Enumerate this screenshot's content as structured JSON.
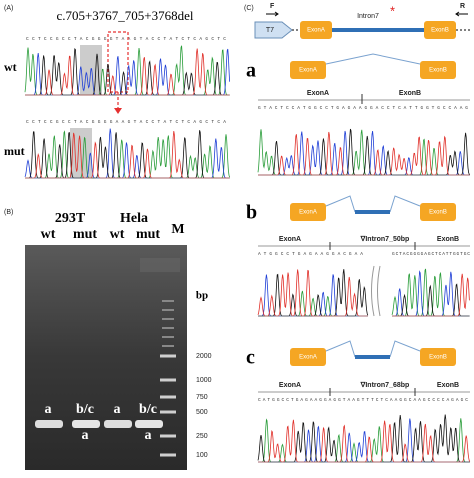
{
  "panel_a": {
    "label": "(A)",
    "mutation": "c.705+3767_705+3768del",
    "rows": [
      "wt",
      "mut"
    ],
    "sequences": [
      "CCTCCGCCTACGGGGTAAGTACCTATCTCAGCTC",
      "CCTCCGCCTACGGGGAAGTACCTATCTCAGCTCA"
    ]
  },
  "panel_b": {
    "label": "(B)",
    "groups": [
      "293T",
      "Hela"
    ],
    "lanes": [
      "wt",
      "mut",
      "wt",
      "mut"
    ],
    "marker": "M",
    "unit": "bp",
    "ladder": [
      2000,
      1000,
      750,
      500,
      250,
      100
    ],
    "band_labels": [
      "a",
      "b/c",
      "a",
      "a",
      "b/c",
      "a"
    ]
  },
  "panel_c": {
    "label": "(C)",
    "primer_f": "F",
    "primer_r": "R",
    "promoter": "T7",
    "exon_a": "ExonA",
    "intron": "Intron7",
    "star": "*",
    "exon_b": "ExonB",
    "variants": [
      {
        "label": "a",
        "exon_a": "ExonA",
        "exon_b": "ExonB",
        "seq_exon_a": "ExonA",
        "seq_exon_b": "ExonB",
        "sequence": "GTACTCCATGGCCTGAGAAGGACCTCATTGGTGCCAAG"
      },
      {
        "label": "b",
        "exon_a": "ExonA",
        "exon_b": "ExonB",
        "seq_exon_a": "ExonA",
        "insert": "∇Intron7_50bp",
        "seq_exon_b": "ExonB",
        "sequence": "ATGGCCTGAGAAGGACGAA",
        "sequence_2": "GCTACGGGGAGCTCATTGGTGC"
      },
      {
        "label": "c",
        "exon_a": "ExonA",
        "exon_b": "ExonB",
        "seq_exon_a": "ExonA",
        "insert": "∇Intron7_68bp",
        "seq_exon_b": "ExonB",
        "sequence": "CATGGCCTGAGAAGGAGGTAAGTTTCTCAAGGCAAGCCCCAGAGC"
      }
    ]
  }
}
